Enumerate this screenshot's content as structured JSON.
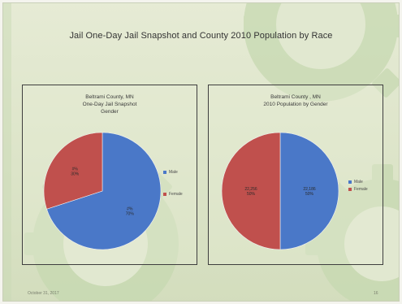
{
  "slide": {
    "title": "Jail One-Day Jail Snapshot and County 2010 Population by Race",
    "footer_date": "October 31, 2017",
    "page_number": "16"
  },
  "colors": {
    "male": "#4a78c8",
    "female": "#c0504d",
    "background": "#dce4c8",
    "gear": "#bfd3a9"
  },
  "chart_data": [
    {
      "type": "pie",
      "title_lines": [
        "Beltrami County, MN",
        "One-Day Jail Snapshot",
        "Gender"
      ],
      "slices": [
        {
          "label": "Male",
          "value": 70,
          "data_label_lines": [
            "#%",
            "70%"
          ]
        },
        {
          "label": "Female",
          "value": 30,
          "data_label_lines": [
            "#%",
            "30%"
          ]
        }
      ],
      "legend": {
        "position": "right",
        "entries": [
          "Male",
          "Female"
        ]
      }
    },
    {
      "type": "pie",
      "title_lines": [
        "Beltrami County , MN",
        "2010 Population by Gender"
      ],
      "slices": [
        {
          "label": "Male",
          "value": 50,
          "data_label_lines": [
            "22,186",
            "50%"
          ]
        },
        {
          "label": "Female",
          "value": 50,
          "data_label_lines": [
            "22,256",
            "50%"
          ]
        }
      ],
      "legend": {
        "position": "right",
        "entries": [
          "Male",
          "Female"
        ]
      }
    }
  ]
}
